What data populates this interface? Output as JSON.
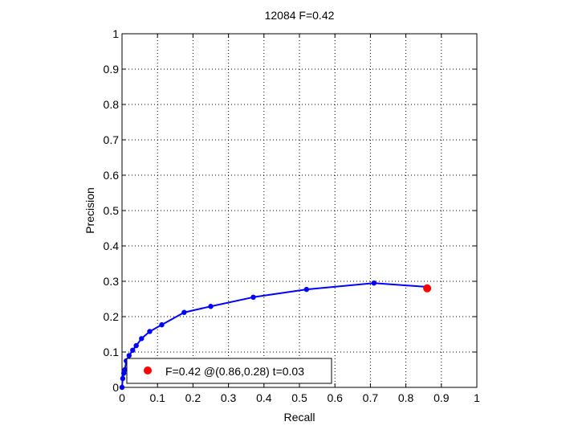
{
  "chart_data": {
    "type": "line",
    "title": "12084 F=0.42",
    "xlabel": "Recall",
    "ylabel": "Precision",
    "xlim": [
      0,
      1
    ],
    "ylim": [
      0,
      1
    ],
    "xticks": [
      "0",
      "0.1",
      "0.2",
      "0.3",
      "0.4",
      "0.5",
      "0.6",
      "0.7",
      "0.8",
      "0.9",
      "1"
    ],
    "yticks": [
      "0",
      "0.1",
      "0.2",
      "0.3",
      "0.4",
      "0.5",
      "0.6",
      "0.7",
      "0.8",
      "0.9",
      "1"
    ],
    "grid": true,
    "grid_style": "dotted",
    "series": [
      {
        "color": "#0000ff",
        "x": [
          0.0,
          0.002,
          0.005,
          0.008,
          0.012,
          0.02,
          0.03,
          0.04,
          0.055,
          0.078,
          0.112,
          0.175,
          0.25,
          0.37,
          0.52,
          0.71,
          0.86
        ],
        "y": [
          0.0,
          0.025,
          0.04,
          0.05,
          0.075,
          0.09,
          0.105,
          0.118,
          0.138,
          0.158,
          0.177,
          0.212,
          0.229,
          0.255,
          0.277,
          0.295,
          0.284
        ]
      }
    ],
    "highlight": {
      "x": 0.86,
      "y": 0.28,
      "color": "#ff0000"
    },
    "legend": {
      "label": "F=0.42 @(0.86,0.28) t=0.03",
      "placement": "bottom-left"
    }
  }
}
